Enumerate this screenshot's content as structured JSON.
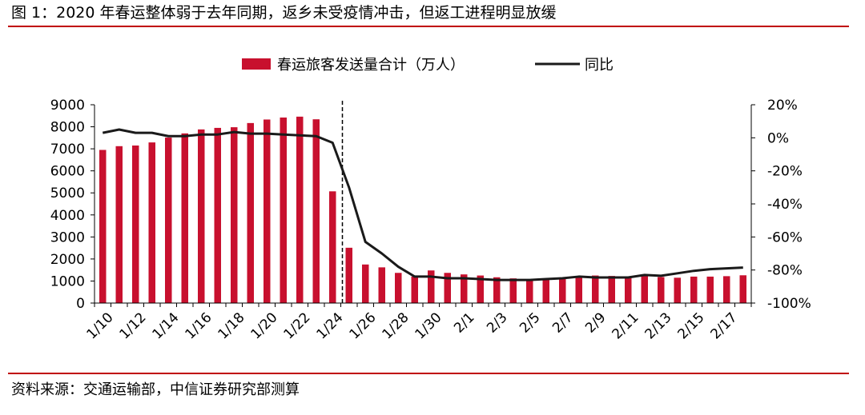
{
  "figure": {
    "title": "图 1：2020 年春运整体弱于去年同期，返乡未受疫情冲击，但返工进程明显放缓",
    "source": "资料来源：交通运输部，中信证券研究部测算"
  },
  "colors": {
    "bar": "#c8102e",
    "line": "#1a1a1a",
    "rule": "#c00000",
    "axis": "#000000"
  },
  "chart_data": {
    "type": "bar",
    "legend_position": "top-center",
    "grid": false,
    "categories": [
      "1/10",
      "1/11",
      "1/12",
      "1/13",
      "1/14",
      "1/15",
      "1/16",
      "1/17",
      "1/18",
      "1/19",
      "1/20",
      "1/21",
      "1/22",
      "1/23",
      "1/24",
      "1/25",
      "1/26",
      "1/27",
      "1/28",
      "1/29",
      "1/30",
      "1/31",
      "2/1",
      "2/2",
      "2/3",
      "2/4",
      "2/5",
      "2/6",
      "2/7",
      "2/8",
      "2/9",
      "2/10",
      "2/11",
      "2/12",
      "2/13",
      "2/14",
      "2/15",
      "2/16",
      "2/17",
      "2/18"
    ],
    "x_tick_labels": [
      "1/10",
      "1/12",
      "1/14",
      "1/16",
      "1/18",
      "1/20",
      "1/22",
      "1/24",
      "1/26",
      "1/28",
      "1/30",
      "2/1",
      "2/3",
      "2/5",
      "2/7",
      "2/9",
      "2/11",
      "2/13",
      "2/15",
      "2/17"
    ],
    "series": [
      {
        "name": "春运旅客发送量合计（万人）",
        "type": "bar",
        "axis": "left",
        "values": [
          6950,
          7120,
          7150,
          7290,
          7510,
          7700,
          7880,
          7950,
          7980,
          8170,
          8330,
          8420,
          8460,
          8340,
          5070,
          2510,
          1750,
          1620,
          1370,
          1200,
          1480,
          1370,
          1300,
          1250,
          1170,
          1120,
          1080,
          1050,
          1100,
          1180,
          1250,
          1230,
          1170,
          1280,
          1180,
          1150,
          1200,
          1200,
          1220,
          1260
        ]
      },
      {
        "name": "同比",
        "type": "line",
        "axis": "right",
        "values": [
          0.03,
          0.05,
          0.03,
          0.03,
          0.01,
          0.01,
          0.02,
          0.02,
          0.035,
          0.025,
          0.025,
          0.02,
          0.015,
          0.01,
          -0.03,
          -0.3,
          -0.63,
          -0.7,
          -0.78,
          -0.84,
          -0.84,
          -0.85,
          -0.85,
          -0.855,
          -0.86,
          -0.86,
          -0.86,
          -0.855,
          -0.85,
          -0.84,
          -0.845,
          -0.845,
          -0.845,
          -0.83,
          -0.835,
          -0.82,
          -0.805,
          -0.795,
          -0.79,
          -0.785
        ]
      }
    ],
    "y_left": {
      "min": 0,
      "max": 9000,
      "ticks": [
        "0",
        "1000",
        "2000",
        "3000",
        "4000",
        "5000",
        "6000",
        "7000",
        "8000",
        "9000"
      ]
    },
    "y_right": {
      "min": -1.0,
      "max": 0.2,
      "ticks": [
        "-100%",
        "-80%",
        "-60%",
        "-40%",
        "-20%",
        "0%",
        "20%"
      ]
    },
    "divider_after_category": "1/24"
  }
}
